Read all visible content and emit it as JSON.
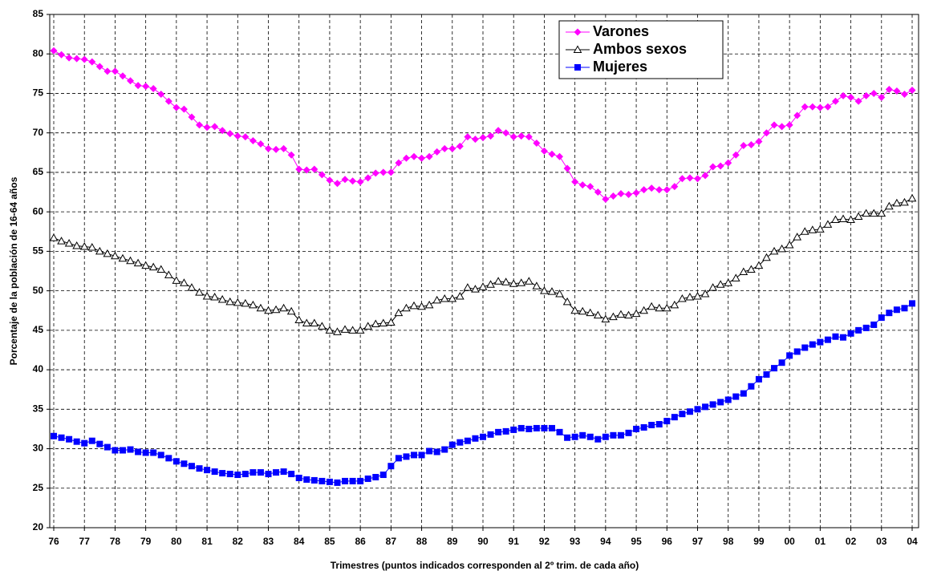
{
  "chart_data": {
    "type": "line",
    "ylabel": "Porcentaje de la población de 16-64 años",
    "xlabel": "Trimestres (puntos indicados corresponden al 2º trim. de cada año)",
    "categories": [
      "76",
      null,
      null,
      null,
      "77",
      null,
      null,
      null,
      "78",
      null,
      null,
      null,
      "79",
      null,
      null,
      null,
      "80",
      null,
      null,
      null,
      "81",
      null,
      null,
      null,
      "82",
      null,
      null,
      null,
      "83",
      null,
      null,
      null,
      "84",
      null,
      null,
      null,
      "85",
      null,
      null,
      null,
      "86",
      null,
      null,
      null,
      "87",
      null,
      null,
      null,
      "88",
      null,
      null,
      null,
      "89",
      null,
      null,
      null,
      "90",
      null,
      null,
      null,
      "91",
      null,
      null,
      null,
      "92",
      null,
      null,
      null,
      "93",
      null,
      null,
      null,
      "94",
      null,
      null,
      null,
      "95",
      null,
      null,
      null,
      "96",
      null,
      null,
      null,
      "97",
      null,
      null,
      null,
      "98",
      null,
      null,
      null,
      "99",
      null,
      null,
      null,
      "00",
      null,
      null,
      null,
      "01",
      null,
      null,
      null,
      "02",
      null,
      null,
      null,
      "03",
      null,
      null,
      null,
      "04"
    ],
    "series": [
      {
        "name": "Varones",
        "color": "#ff00ff",
        "marker": "diamond",
        "values": [
          80.4,
          79.9,
          79.5,
          79.4,
          79.3,
          79.0,
          78.4,
          77.8,
          77.8,
          77.2,
          76.6,
          76.0,
          75.9,
          75.6,
          74.9,
          74.0,
          73.2,
          73.0,
          72.0,
          71.0,
          70.7,
          70.8,
          70.3,
          69.9,
          69.6,
          69.5,
          69.0,
          68.6,
          68.0,
          67.9,
          68.0,
          67.2,
          65.4,
          65.3,
          65.4,
          64.7,
          64.0,
          63.6,
          64.1,
          63.9,
          63.8,
          64.3,
          64.9,
          65.0,
          65.0,
          66.2,
          66.8,
          67.0,
          66.8,
          67.0,
          67.6,
          68.0,
          68.0,
          68.3,
          69.5,
          69.2,
          69.4,
          69.6,
          70.3,
          70.0,
          69.5,
          69.6,
          69.5,
          68.7,
          67.7,
          67.3,
          67.0,
          65.5,
          63.8,
          63.4,
          63.2,
          62.5,
          61.6,
          62.0,
          62.3,
          62.2,
          62.4,
          62.8,
          63.0,
          62.8,
          62.8,
          63.2,
          64.2,
          64.3,
          64.2,
          64.6,
          65.7,
          65.8,
          66.2,
          67.2,
          68.4,
          68.5,
          68.9,
          70.0,
          71.0,
          70.8,
          71.0,
          72.2,
          73.3,
          73.3,
          73.2,
          73.3,
          74.0,
          74.7,
          74.5,
          74.0,
          74.7,
          75.0,
          74.5,
          75.5,
          75.3,
          74.9,
          75.4
        ]
      },
      {
        "name": "Ambos sexos",
        "color": "#000000",
        "marker": "triangle",
        "values": [
          56.7,
          56.3,
          56.0,
          55.7,
          55.6,
          55.5,
          55.0,
          54.7,
          54.4,
          54.1,
          53.8,
          53.5,
          53.2,
          53.0,
          52.7,
          52.0,
          51.3,
          51.0,
          50.4,
          49.8,
          49.3,
          49.2,
          48.9,
          48.6,
          48.5,
          48.4,
          48.2,
          47.8,
          47.5,
          47.6,
          47.8,
          47.4,
          46.3,
          45.9,
          45.9,
          45.5,
          45.0,
          44.8,
          45.1,
          45.0,
          45.0,
          45.5,
          45.8,
          45.9,
          46.0,
          47.2,
          47.8,
          48.1,
          48.0,
          48.2,
          48.8,
          49.0,
          49.0,
          49.3,
          50.4,
          50.2,
          50.5,
          50.8,
          51.2,
          51.1,
          50.9,
          51.0,
          51.2,
          50.6,
          50.0,
          49.9,
          49.6,
          48.6,
          47.5,
          47.4,
          47.2,
          46.9,
          46.4,
          46.7,
          47.0,
          46.9,
          47.1,
          47.5,
          48.0,
          47.8,
          47.8,
          48.2,
          49.0,
          49.2,
          49.3,
          49.6,
          50.4,
          50.8,
          51.0,
          51.6,
          52.4,
          52.7,
          53.2,
          54.2,
          55.0,
          55.3,
          55.8,
          56.8,
          57.5,
          57.7,
          57.8,
          58.4,
          59.0,
          59.1,
          59.0,
          59.4,
          59.8,
          59.8,
          59.8,
          60.7,
          61.1,
          61.2,
          61.7
        ]
      },
      {
        "name": "Mujeres",
        "color": "#0000ff",
        "marker": "square",
        "values": [
          31.6,
          31.4,
          31.2,
          30.9,
          30.7,
          31.0,
          30.6,
          30.2,
          29.8,
          29.8,
          29.9,
          29.6,
          29.5,
          29.5,
          29.2,
          28.8,
          28.4,
          28.1,
          27.8,
          27.5,
          27.3,
          27.1,
          26.9,
          26.8,
          26.7,
          26.8,
          27.0,
          27.0,
          26.8,
          27.0,
          27.1,
          26.8,
          26.3,
          26.1,
          26.0,
          25.9,
          25.8,
          25.7,
          25.9,
          25.9,
          25.9,
          26.2,
          26.4,
          26.7,
          27.8,
          28.8,
          29.0,
          29.2,
          29.2,
          29.7,
          29.6,
          29.9,
          30.5,
          30.8,
          31.0,
          31.3,
          31.5,
          31.8,
          32.1,
          32.2,
          32.4,
          32.6,
          32.5,
          32.6,
          32.6,
          32.6,
          32.1,
          31.4,
          31.5,
          31.7,
          31.5,
          31.2,
          31.5,
          31.7,
          31.7,
          32.0,
          32.5,
          32.7,
          33.0,
          33.1,
          33.5,
          34.0,
          34.4,
          34.7,
          35.0,
          35.3,
          35.6,
          35.9,
          36.2,
          36.6,
          37.0,
          37.9,
          38.8,
          39.4,
          40.2,
          40.9,
          41.8,
          42.3,
          42.8,
          43.2,
          43.5,
          43.8,
          44.2,
          44.1,
          44.6,
          45.0,
          45.3,
          45.7,
          46.6,
          47.2,
          47.6,
          47.8,
          48.4
        ]
      }
    ],
    "ylim": [
      20,
      85
    ],
    "yticks": [
      20,
      25,
      30,
      35,
      40,
      45,
      50,
      55,
      60,
      65,
      70,
      75,
      80,
      85
    ],
    "grid": true,
    "legend": "top-right"
  }
}
